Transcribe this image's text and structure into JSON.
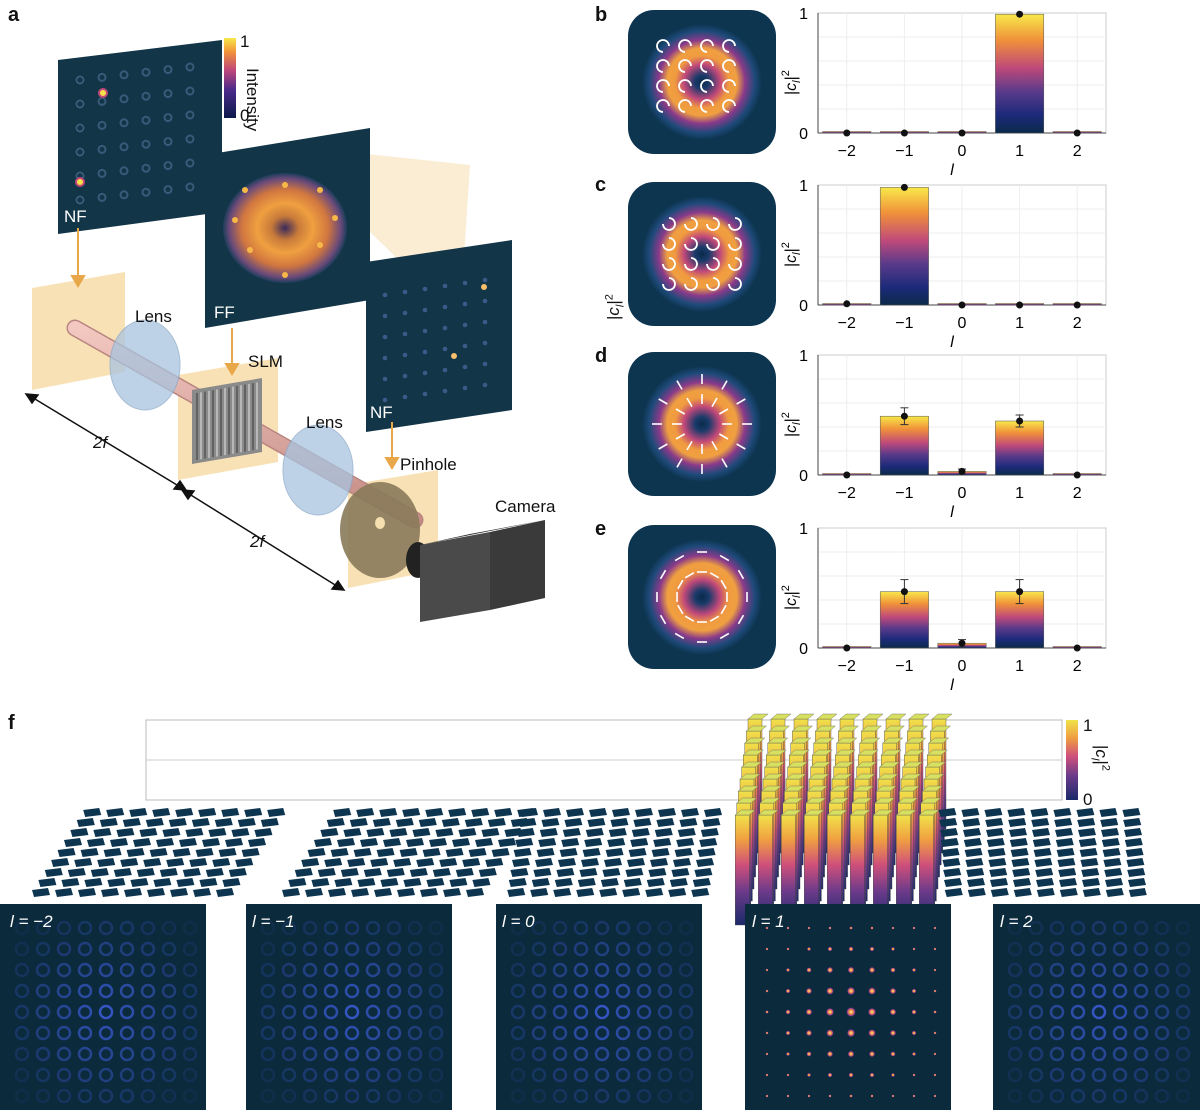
{
  "panels": {
    "a": "a",
    "b": "b",
    "c": "c",
    "d": "d",
    "e": "e",
    "f": "f"
  },
  "setup": {
    "nf_top": "NF",
    "ff": "FF",
    "nf_right": "NF",
    "lens1": "Lens",
    "lens2": "Lens",
    "slm": "SLM",
    "pinhole": "Pinhole",
    "camera": "Camera",
    "dist1": "2f",
    "dist2": "2f",
    "colorbar_label": "Intensity",
    "colorbar_max": "1",
    "colorbar_min": "0"
  },
  "stray_label": "|c_l|^2",
  "colorbar_f": {
    "label": "|c_l|^2",
    "max": "1",
    "min": "0"
  },
  "colors": {
    "dark_navy": "#0b2a3c",
    "yellow": "#f7e84a",
    "orange": "#f19a36",
    "magenta": "#b0457a",
    "purple": "#3a2c7a",
    "beige": "#f8e1b5",
    "beam": "#e8b0a8"
  },
  "chart_data": [
    {
      "panel": "b",
      "type": "bar",
      "categories": [
        "−2",
        "−1",
        "0",
        "1",
        "2"
      ],
      "values": [
        0.0,
        0.0,
        0.0,
        0.99,
        0.0
      ],
      "errors": [
        0,
        0,
        0,
        0,
        0
      ],
      "ylim": [
        0,
        1
      ],
      "yticks": [
        "0",
        "1"
      ],
      "xlabel": "l",
      "ylabel": "|c_l|^2"
    },
    {
      "panel": "c",
      "type": "bar",
      "categories": [
        "−2",
        "−1",
        "0",
        "1",
        "2"
      ],
      "values": [
        0.01,
        0.98,
        0.0,
        0.0,
        0.0
      ],
      "errors": [
        0,
        0,
        0,
        0,
        0
      ],
      "ylim": [
        0,
        1
      ],
      "yticks": [
        "0",
        "1"
      ],
      "xlabel": "l",
      "ylabel": "|c_l|^2"
    },
    {
      "panel": "d",
      "type": "bar",
      "categories": [
        "−2",
        "−1",
        "0",
        "1",
        "2"
      ],
      "values": [
        0.0,
        0.49,
        0.03,
        0.45,
        0.0
      ],
      "errors": [
        0,
        0.07,
        0.02,
        0.05,
        0
      ],
      "ylim": [
        0,
        1
      ],
      "yticks": [
        "0",
        "1"
      ],
      "xlabel": "l",
      "ylabel": "|c_l|^2"
    },
    {
      "panel": "e",
      "type": "bar",
      "categories": [
        "−2",
        "−1",
        "0",
        "1",
        "2"
      ],
      "values": [
        0.0,
        0.47,
        0.04,
        0.47,
        0.0
      ],
      "errors": [
        0,
        0.1,
        0.03,
        0.1,
        0
      ],
      "ylim": [
        0,
        1
      ],
      "yticks": [
        "0",
        "1"
      ],
      "xlabel": "l",
      "ylabel": "|c_l|^2"
    },
    {
      "panel": "f",
      "type": "bar3d",
      "categories": [
        "l = −2",
        "l = −1",
        "l = 0",
        "l = 1",
        "l = 2"
      ],
      "values": [
        0,
        0,
        0,
        1,
        0
      ]
    }
  ],
  "bottom_labels": [
    "l = −2",
    "l = −1",
    "l = 0",
    "l = 1",
    "l = 2"
  ]
}
